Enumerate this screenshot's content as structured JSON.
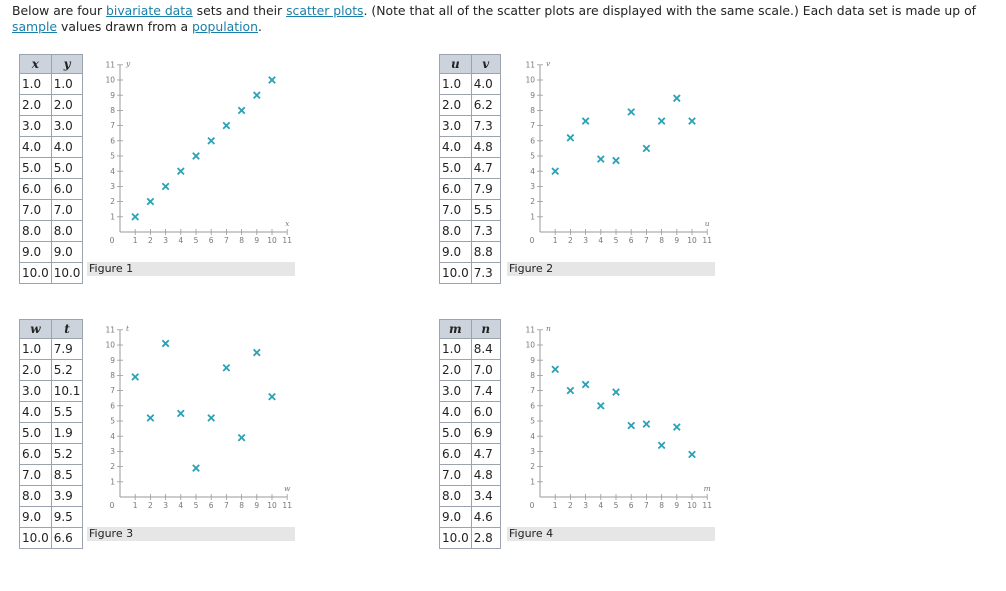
{
  "intro": {
    "t1": "Below are four ",
    "l1": "bivariate data",
    "t2": " sets and their ",
    "l2": "scatter plots",
    "t3": ". (Note that all of the scatter plots are displayed with the same scale.) Each data set is made up of",
    "l3": "sample",
    "t4": " values drawn from a ",
    "l4": "population",
    "t5": "."
  },
  "colors": {
    "marker": "#2aa1b5",
    "axis": "#999999",
    "table_header": "#cdd3dc",
    "caption_bg": "#e6e6e6",
    "link": "#1a7fa8"
  },
  "datasets": [
    {
      "caption": "Figure 1",
      "x_label": "x",
      "y_label": "y",
      "rows": [
        [
          "1.0",
          "1.0"
        ],
        [
          "2.0",
          "2.0"
        ],
        [
          "3.0",
          "3.0"
        ],
        [
          "4.0",
          "4.0"
        ],
        [
          "5.0",
          "5.0"
        ],
        [
          "6.0",
          "6.0"
        ],
        [
          "7.0",
          "7.0"
        ],
        [
          "8.0",
          "8.0"
        ],
        [
          "9.0",
          "9.0"
        ],
        [
          "10.0",
          "10.0"
        ]
      ]
    },
    {
      "caption": "Figure 2",
      "x_label": "u",
      "y_label": "v",
      "rows": [
        [
          "1.0",
          "4.0"
        ],
        [
          "2.0",
          "6.2"
        ],
        [
          "3.0",
          "7.3"
        ],
        [
          "4.0",
          "4.8"
        ],
        [
          "5.0",
          "4.7"
        ],
        [
          "6.0",
          "7.9"
        ],
        [
          "7.0",
          "5.5"
        ],
        [
          "8.0",
          "7.3"
        ],
        [
          "9.0",
          "8.8"
        ],
        [
          "10.0",
          "7.3"
        ]
      ]
    },
    {
      "caption": "Figure 3",
      "x_label": "w",
      "y_label": "t",
      "rows": [
        [
          "1.0",
          "7.9"
        ],
        [
          "2.0",
          "5.2"
        ],
        [
          "3.0",
          "10.1"
        ],
        [
          "4.0",
          "5.5"
        ],
        [
          "5.0",
          "1.9"
        ],
        [
          "6.0",
          "5.2"
        ],
        [
          "7.0",
          "8.5"
        ],
        [
          "8.0",
          "3.9"
        ],
        [
          "9.0",
          "9.5"
        ],
        [
          "10.0",
          "6.6"
        ]
      ]
    },
    {
      "caption": "Figure 4",
      "x_label": "m",
      "y_label": "n",
      "rows": [
        [
          "1.0",
          "8.4"
        ],
        [
          "2.0",
          "7.0"
        ],
        [
          "3.0",
          "7.4"
        ],
        [
          "4.0",
          "6.0"
        ],
        [
          "5.0",
          "6.9"
        ],
        [
          "6.0",
          "4.7"
        ],
        [
          "7.0",
          "4.8"
        ],
        [
          "8.0",
          "3.4"
        ],
        [
          "9.0",
          "4.6"
        ],
        [
          "10.0",
          "2.8"
        ]
      ]
    }
  ],
  "chart_data": [
    {
      "type": "scatter",
      "title": "Figure 1",
      "xlabel": "x",
      "ylabel": "y",
      "xlim": [
        0,
        11
      ],
      "ylim": [
        0,
        11
      ],
      "x_ticks": [
        1,
        2,
        3,
        4,
        5,
        6,
        7,
        8,
        9,
        10,
        11
      ],
      "y_ticks": [
        1,
        2,
        3,
        4,
        5,
        6,
        7,
        8,
        9,
        10,
        11
      ],
      "origin_label": "0",
      "grid": false,
      "x": [
        1,
        2,
        3,
        4,
        5,
        6,
        7,
        8,
        9,
        10
      ],
      "y": [
        1,
        2,
        3,
        4,
        5,
        6,
        7,
        8,
        9,
        10
      ]
    },
    {
      "type": "scatter",
      "title": "Figure 2",
      "xlabel": "u",
      "ylabel": "v",
      "xlim": [
        0,
        11
      ],
      "ylim": [
        0,
        11
      ],
      "x_ticks": [
        1,
        2,
        3,
        4,
        5,
        6,
        7,
        8,
        9,
        10,
        11
      ],
      "y_ticks": [
        1,
        2,
        3,
        4,
        5,
        6,
        7,
        8,
        9,
        10,
        11
      ],
      "origin_label": "0",
      "grid": false,
      "x": [
        1,
        2,
        3,
        4,
        5,
        6,
        7,
        8,
        9,
        10
      ],
      "y": [
        4.0,
        6.2,
        7.3,
        4.8,
        4.7,
        7.9,
        5.5,
        7.3,
        8.8,
        7.3
      ]
    },
    {
      "type": "scatter",
      "title": "Figure 3",
      "xlabel": "w",
      "ylabel": "t",
      "xlim": [
        0,
        11
      ],
      "ylim": [
        0,
        11
      ],
      "x_ticks": [
        1,
        2,
        3,
        4,
        5,
        6,
        7,
        8,
        9,
        10,
        11
      ],
      "y_ticks": [
        1,
        2,
        3,
        4,
        5,
        6,
        7,
        8,
        9,
        10,
        11
      ],
      "origin_label": "0",
      "grid": false,
      "x": [
        1,
        2,
        3,
        4,
        5,
        6,
        7,
        8,
        9,
        10
      ],
      "y": [
        7.9,
        5.2,
        10.1,
        5.5,
        1.9,
        5.2,
        8.5,
        3.9,
        9.5,
        6.6
      ]
    },
    {
      "type": "scatter",
      "title": "Figure 4",
      "xlabel": "m",
      "ylabel": "n",
      "xlim": [
        0,
        11
      ],
      "ylim": [
        0,
        11
      ],
      "x_ticks": [
        1,
        2,
        3,
        4,
        5,
        6,
        7,
        8,
        9,
        10,
        11
      ],
      "y_ticks": [
        1,
        2,
        3,
        4,
        5,
        6,
        7,
        8,
        9,
        10,
        11
      ],
      "origin_label": "0",
      "grid": false,
      "x": [
        1,
        2,
        3,
        4,
        5,
        6,
        7,
        8,
        9,
        10
      ],
      "y": [
        8.4,
        7.0,
        7.4,
        6.0,
        6.9,
        4.7,
        4.8,
        3.4,
        4.6,
        2.8
      ]
    }
  ]
}
